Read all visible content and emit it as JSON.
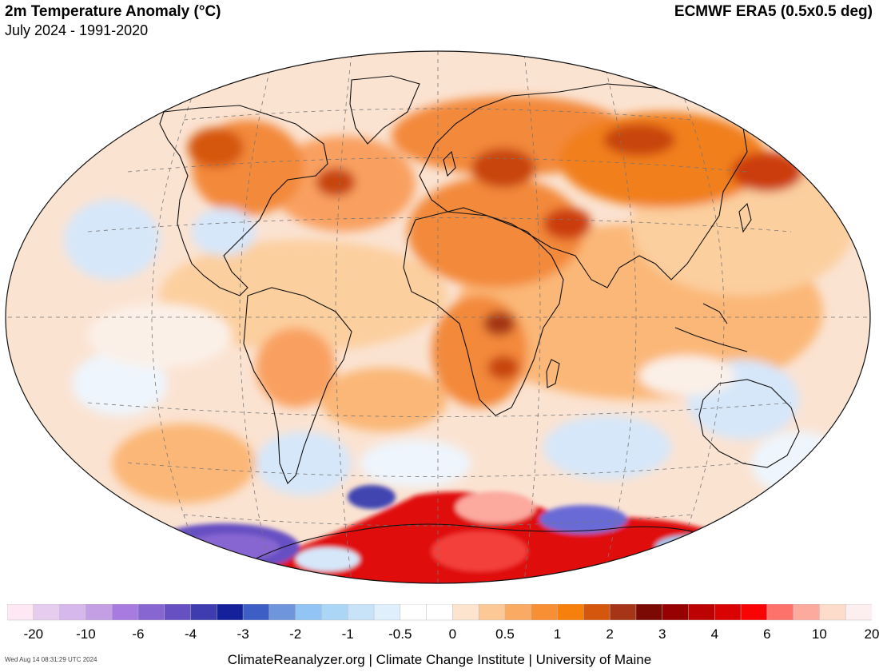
{
  "header": {
    "title": "2m Temperature Anomaly (°C)",
    "subtitle": "July 2024 - 1991-2020",
    "source": "ECMWF ERA5 (0.5x0.5 deg)"
  },
  "legend": {
    "ticks": [
      "-20",
      "-10",
      "-6",
      "-4",
      "-3",
      "-2",
      "-1",
      "-0.5",
      "0",
      "0.5",
      "1",
      "2",
      "3",
      "4",
      "6",
      "10",
      "20"
    ],
    "colors": [
      "#fde8f3",
      "#e6cdef",
      "#d7b8ec",
      "#c59fe4",
      "#a87be0",
      "#8766d2",
      "#6650c2",
      "#3e3cae",
      "#14219b",
      "#3d5ec4",
      "#6f96dd",
      "#92c4f5",
      "#acd6f6",
      "#c8e2f7",
      "#dfeffc",
      "#ffffff",
      "#ffffff",
      "#fde4ce",
      "#fcc895",
      "#fbaa63",
      "#f98f35",
      "#f77f0b",
      "#d5570d",
      "#a53516",
      "#7b0a05",
      "#980101",
      "#bc0202",
      "#da0303",
      "#f90405",
      "#fd736b",
      "#fca99e",
      "#fddccb",
      "#fdeff0"
    ]
  },
  "map": {
    "projection": "Winkel Tripel",
    "colors": {
      "ocean_base": "#fbe3d2",
      "warm_light": "#fccf9f",
      "warm_mid": "#faa663",
      "warm_strong": "#f17f1e",
      "hot": "#cc3e0d",
      "very_hot": "#d90a06",
      "cool_light": "#d6e7fa",
      "cool_mid": "#a2c9f2",
      "cold": "#6b6ad6",
      "coastline": "#111111",
      "graticule": "#777777"
    }
  },
  "footer": {
    "timestamp": "Wed Aug 14 08:31:29 UTC 2024",
    "credit": "ClimateReanalyzer.org | Climate Change Institute | University of Maine"
  }
}
